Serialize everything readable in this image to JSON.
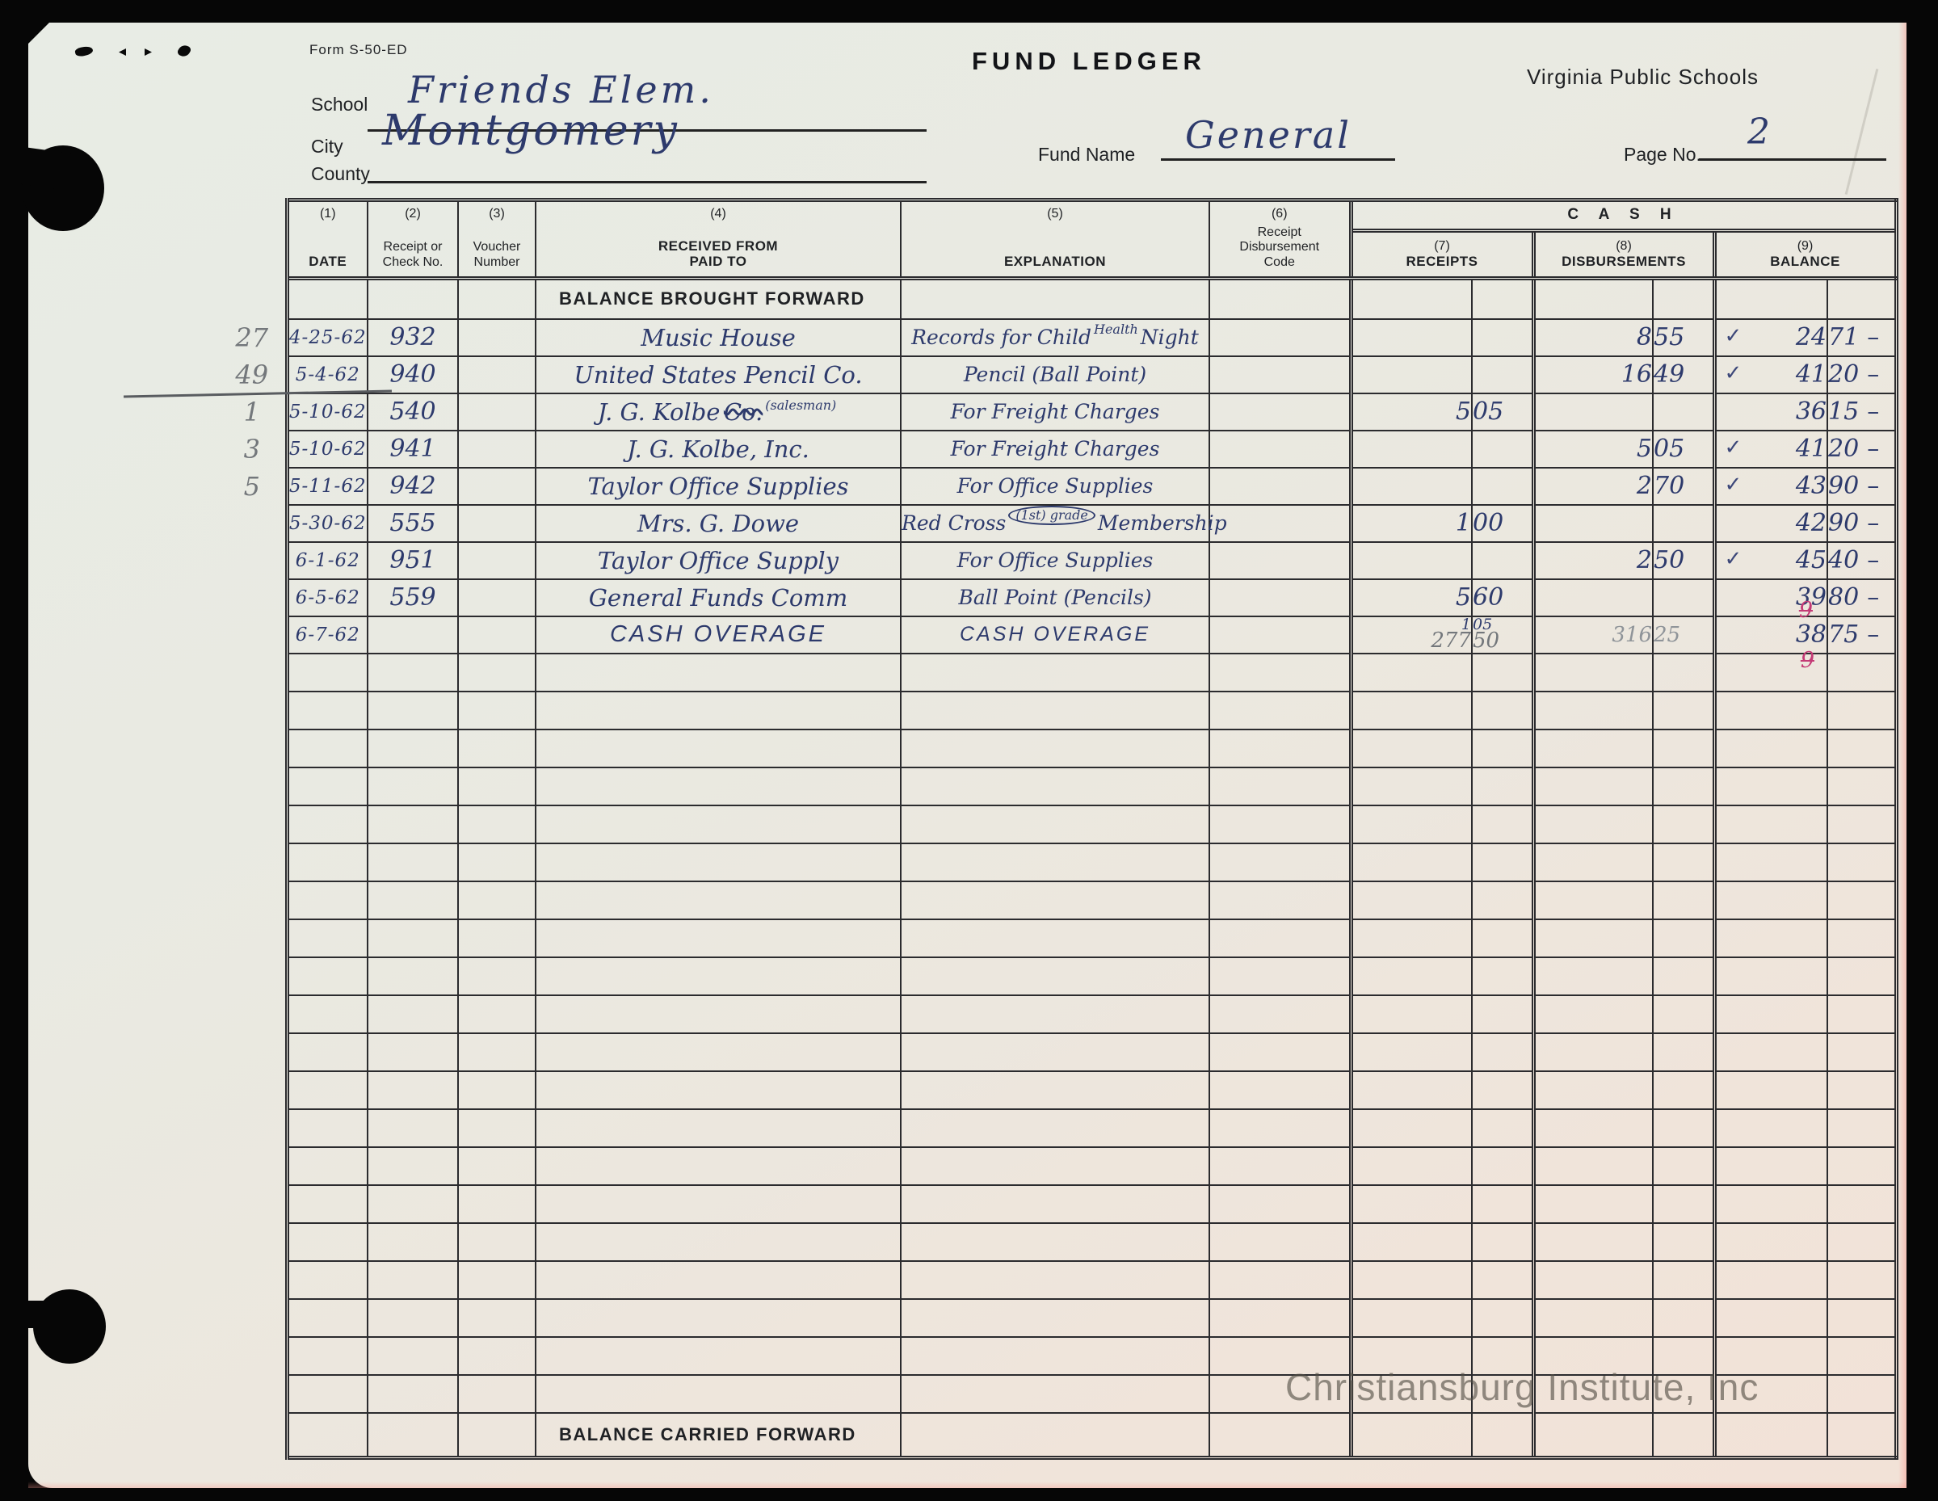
{
  "page": {
    "form_number": "Form S-50-ED",
    "title": "FUND LEDGER",
    "organization": "Virginia Public Schools",
    "fields": {
      "school_label": "School",
      "school_value": "Friends Elem.",
      "city_label": "City",
      "county_label": "County",
      "city_county_value": "Montgomery",
      "fund_name_label": "Fund Name",
      "fund_name_value": "General",
      "page_no_label": "Page No.",
      "page_no_value": "2"
    },
    "watermark": "Christiansburg Institute, Inc"
  },
  "table": {
    "cash_group_label": "C A S H",
    "columns": {
      "date": {
        "num": "(1)",
        "label": "DATE"
      },
      "receipt_check_no": {
        "num": "(2)",
        "label": "Receipt or\nCheck No."
      },
      "voucher": {
        "num": "(3)",
        "label": "Voucher\nNumber"
      },
      "received_from": {
        "num": "(4)",
        "label": "RECEIVED FROM\nPAID TO"
      },
      "explanation": {
        "num": "(5)",
        "label": "EXPLANATION"
      },
      "code": {
        "num": "(6)",
        "label": "Receipt\nDisbursement\nCode"
      },
      "receipts": {
        "num": "(7)",
        "label": "RECEIPTS"
      },
      "disbursements": {
        "num": "(8)",
        "label": "DISBURSEMENTS"
      },
      "balance": {
        "num": "(9)",
        "label": "BALANCE"
      }
    },
    "balance_brought_forward": "BALANCE BROUGHT FORWARD",
    "balance_carried_forward": "BALANCE CARRIED FORWARD",
    "empty_rows": 20,
    "entries": [
      {
        "margin": "27",
        "date": "4-25-62",
        "check_no": "932",
        "paid_to": "Music House",
        "explanation": "Records for Child",
        "explanation_sup": "Health",
        "explanation_post": "Night",
        "disbursement_dollars": "8",
        "disbursement_cents": "55",
        "balance_check": "✓",
        "balance_dollars": "24",
        "balance_cents": "71",
        "balance_dash": "–"
      },
      {
        "margin": "49",
        "margin_strike": true,
        "date": "5-4-62",
        "check_no": "940",
        "paid_to": "United States Pencil Co.",
        "explanation": "Pencil (Ball Point)",
        "disbursement_dollars": "16",
        "disbursement_cents": "49",
        "balance_check": "✓",
        "balance_dollars": "41",
        "balance_cents": "20",
        "balance_dash": "–"
      },
      {
        "margin": "1",
        "date": "5-10-62",
        "check_no": "540",
        "paid_to": "J. G. Kolbe",
        "paid_to_scribbled": "Co.",
        "paid_to_sup": "(salesman)",
        "explanation": "For Freight Charges",
        "receipts_dollars": "5",
        "receipts_cents": "05",
        "balance_dollars": "36",
        "balance_cents": "15",
        "balance_dash": "–"
      },
      {
        "margin": "3",
        "date": "5-10-62",
        "check_no": "941",
        "paid_to": "J. G. Kolbe, Inc.",
        "explanation": "For Freight Charges",
        "disbursement_dollars": "5",
        "disbursement_cents": "05",
        "balance_check": "✓",
        "balance_dollars": "41",
        "balance_cents": "20",
        "balance_dash": "–"
      },
      {
        "margin": "5",
        "date": "5-11-62",
        "check_no": "942",
        "paid_to": "Taylor Office Supplies",
        "explanation": "For Office Supplies",
        "disbursement_dollars": "2",
        "disbursement_cents": "70",
        "balance_check": "✓",
        "balance_dollars": "43",
        "balance_cents": "90",
        "balance_dash": "–"
      },
      {
        "date": "5-30-62",
        "check_no": "555",
        "paid_to": "Mrs. G. Dowe",
        "explanation": "Red Cross",
        "explanation_sup": "(1st) grade",
        "explanation_sup_circled": true,
        "explanation_post": "Membership",
        "receipts_dollars": "1",
        "receipts_cents": "00",
        "balance_dollars": "42",
        "balance_cents": "90",
        "balance_dash": "–"
      },
      {
        "date": "6-1-62",
        "check_no": "951",
        "paid_to": "Taylor Office Supply",
        "explanation": "For Office Supplies",
        "disbursement_dollars": "2",
        "disbursement_cents": "50",
        "balance_check": "✓",
        "balance_dollars": "45",
        "balance_cents": "40",
        "balance_dash": "–"
      },
      {
        "date": "6-5-62",
        "check_no": "559",
        "paid_to": "General Funds Comm",
        "explanation": "Ball Point (Pencils)",
        "receipts_dollars": "5",
        "receipts_cents": "60",
        "balance_dollars": "39",
        "balance_cents": "80",
        "balance_dash": "–"
      },
      {
        "date": "6-7-62",
        "paid_to": "CASH OVERAGE",
        "paid_to_caps": true,
        "explanation": "CASH OVERAGE",
        "explanation_caps": true,
        "receipts_small": "1 05",
        "receipts_dollars": "277",
        "receipts_cents": "50",
        "receipts_pencil": true,
        "disbursement_dollars": "316",
        "disbursement_cents": "25",
        "disbursement_pencil": true,
        "balance_red_top": "9",
        "balance_red_bottom": "9",
        "balance_dollars": "38",
        "balance_cents": "75",
        "balance_dash": "–"
      }
    ]
  }
}
